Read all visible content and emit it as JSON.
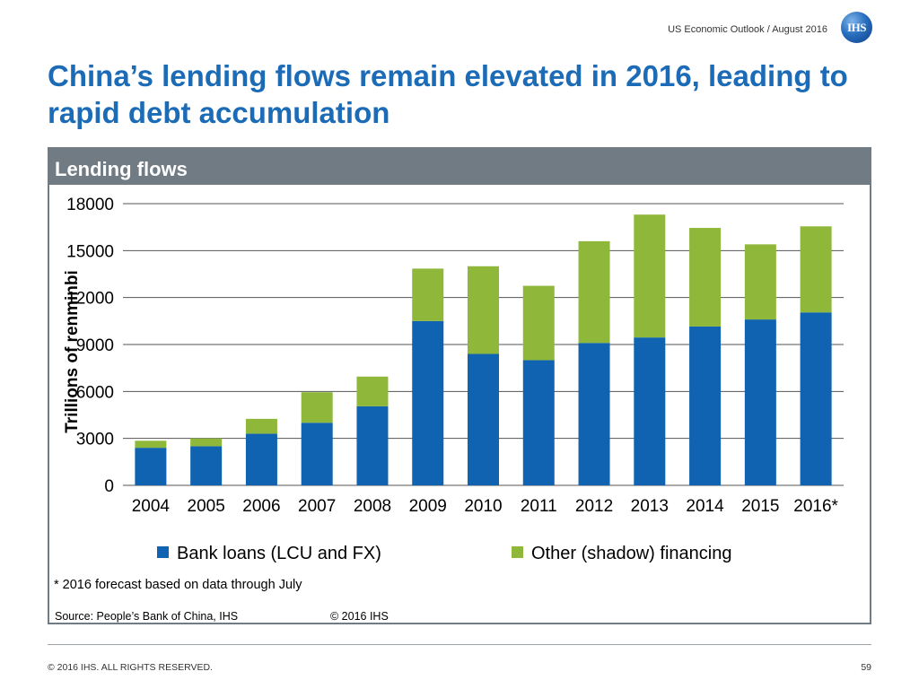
{
  "header": {
    "meta": "US Economic Outlook / August 2016",
    "logo_text": "IHS"
  },
  "title": "China’s lending flows remain elevated in 2016, leading to rapid debt accumulation",
  "panel": {
    "title": "Lending flows"
  },
  "chart_data": {
    "type": "bar",
    "stacked": true,
    "title": "Lending flows",
    "ylabel": "Trillions of renminbi",
    "ylim": [
      0,
      18000
    ],
    "yticks": [
      "0",
      "3000",
      "6000",
      "9000",
      "12000",
      "15000",
      "18000"
    ],
    "grid": true,
    "legend_position": "bottom",
    "categories": [
      "2004",
      "2005",
      "2006",
      "2007",
      "2008",
      "2009",
      "2010",
      "2011",
      "2012",
      "2013",
      "2014",
      "2015",
      "2016*"
    ],
    "series": [
      {
        "name": "Bank loans (LCU and FX)",
        "color": "#0f63b0",
        "values": [
          2400,
          2500,
          3300,
          4000,
          5050,
          10500,
          8400,
          8000,
          9100,
          9450,
          10150,
          10600,
          11050
        ]
      },
      {
        "name": "Other (shadow) financing",
        "color": "#8fb83a",
        "values": [
          450,
          500,
          950,
          1950,
          1900,
          3350,
          5600,
          4750,
          6500,
          7850,
          6300,
          4800,
          5500
        ]
      }
    ]
  },
  "footnote": "* 2016 forecast based on data through July",
  "source": "Source: People’s Bank of China, IHS",
  "source_copyright": "© 2016 IHS",
  "footer": {
    "rights": "© 2016 IHS. ALL RIGHTS RESERVED.",
    "page_number": "59"
  }
}
